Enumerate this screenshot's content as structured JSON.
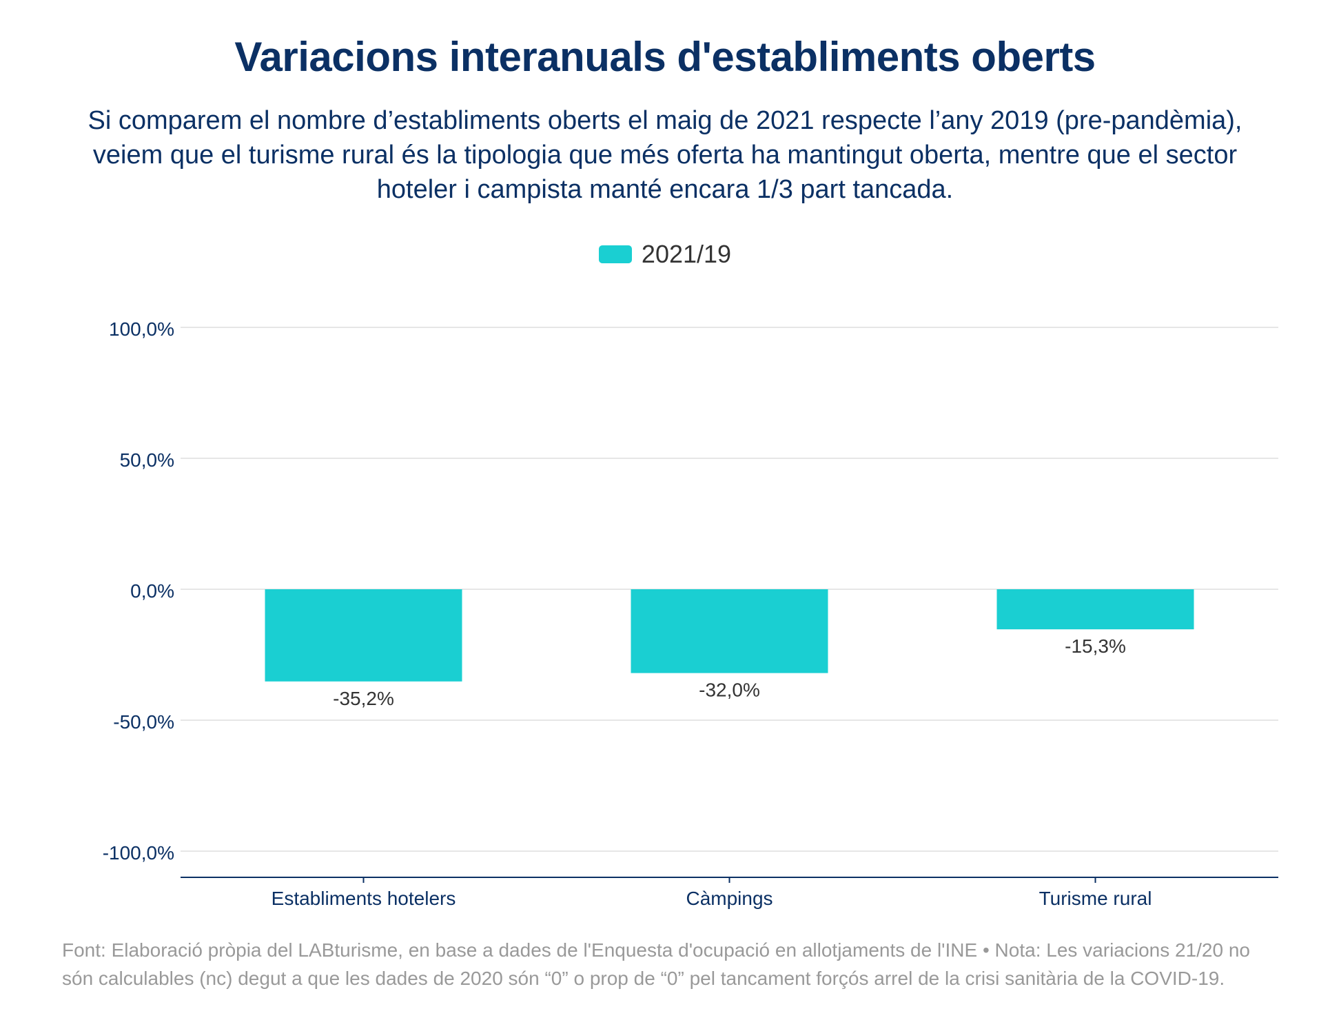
{
  "header": {
    "title": "Variacions interanuals d'establiments oberts",
    "subtitle": "Si comparem el nombre d’establiments oberts el maig de 2021 respecte l’any 2019 (pre-pandèmia), veiem que el turisme rural és la tipologia que més oferta ha mantingut oberta, mentre que el sector hoteler i campista manté encara 1/3 part tancada."
  },
  "colors": {
    "bar": "#1acfd2",
    "title": "#0b3064",
    "grid": "#e6e6e6",
    "axis": "#0b3064",
    "footer": "#999999"
  },
  "chart_data": {
    "type": "bar",
    "categories": [
      "Establiments hotelers",
      "Càmpings",
      "Turisme rural"
    ],
    "series": [
      {
        "name": "2021/19",
        "values": [
          -35.2,
          -32.0,
          -15.3
        ],
        "labels": [
          "-35,2%",
          "-32,0%",
          "-15,3%"
        ]
      }
    ],
    "ylim": [
      -110,
      110
    ],
    "yticks": [
      100,
      50,
      0,
      -50,
      -100
    ],
    "ytick_labels": [
      "100,0%",
      "50,0%",
      "0,0%",
      "-50,0%",
      "-100,0%"
    ],
    "grid": true,
    "legend_position": "top-center"
  },
  "footer": {
    "note": "Font: Elaboració pròpia del LABturisme, en base a dades de l'Enquesta d'ocupació en allotjaments de l'INE • Nota: Les variacions 21/20 no són calculables (nc) degut a que les dades de 2020 són “0” o prop de “0” pel tancament forçós arrel de la crisi sanitària de la COVID-19."
  }
}
